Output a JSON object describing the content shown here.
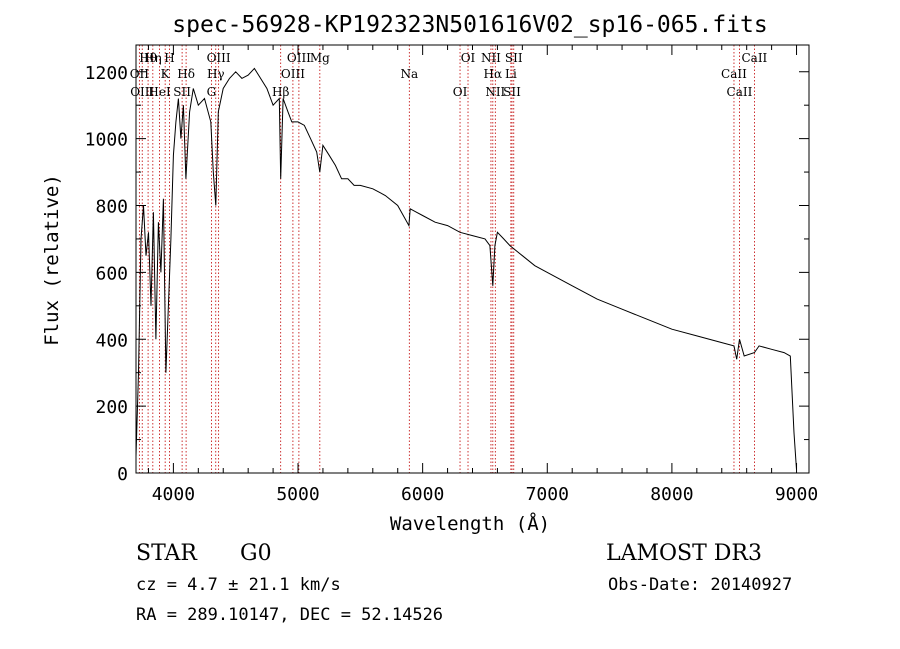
{
  "chart_data": {
    "type": "line",
    "title": "spec-56928-KP192323N501616V02_sp16-065.fits",
    "xlabel": "Wavelength (Å)",
    "ylabel": "Flux (relative)",
    "xlim": [
      3700,
      9100
    ],
    "ylim": [
      0,
      1280
    ],
    "x_ticks": [
      {
        "value": 4000,
        "label": "4000"
      },
      {
        "value": 5000,
        "label": "5000"
      },
      {
        "value": 6000,
        "label": "6000"
      },
      {
        "value": 7000,
        "label": "7000"
      },
      {
        "value": 8000,
        "label": "8000"
      },
      {
        "value": 9000,
        "label": "9000"
      }
    ],
    "y_ticks": [
      {
        "value": 0,
        "label": "0"
      },
      {
        "value": 200,
        "label": "200"
      },
      {
        "value": 400,
        "label": "400"
      },
      {
        "value": 600,
        "label": "600"
      },
      {
        "value": 800,
        "label": "800"
      },
      {
        "value": 1000,
        "label": "1000"
      },
      {
        "value": 1200,
        "label": "1200"
      }
    ],
    "series": [
      {
        "name": "flux",
        "x": [
          3700,
          3720,
          3740,
          3760,
          3780,
          3800,
          3820,
          3840,
          3860,
          3880,
          3900,
          3920,
          3940,
          3960,
          3980,
          4000,
          4020,
          4040,
          4060,
          4080,
          4100,
          4130,
          4160,
          4200,
          4250,
          4300,
          4320,
          4340,
          4360,
          4400,
          4450,
          4500,
          4550,
          4600,
          4650,
          4700,
          4750,
          4800,
          4850,
          4861,
          4880,
          4920,
          4950,
          5000,
          5050,
          5100,
          5150,
          5175,
          5200,
          5250,
          5300,
          5350,
          5400,
          5450,
          5500,
          5600,
          5700,
          5800,
          5890,
          5900,
          5950,
          6000,
          6100,
          6200,
          6300,
          6400,
          6500,
          6540,
          6563,
          6580,
          6600,
          6650,
          6700,
          6800,
          6900,
          7000,
          7200,
          7400,
          7600,
          7800,
          8000,
          8200,
          8400,
          8498,
          8520,
          8542,
          8580,
          8662,
          8700,
          8800,
          8900,
          8950,
          8980,
          9000
        ],
        "y": [
          50,
          300,
          700,
          800,
          650,
          720,
          500,
          780,
          400,
          750,
          600,
          820,
          300,
          500,
          700,
          950,
          1050,
          1120,
          1000,
          1100,
          880,
          1080,
          1150,
          1100,
          1120,
          1050,
          900,
          800,
          1080,
          1150,
          1180,
          1200,
          1180,
          1190,
          1210,
          1180,
          1150,
          1100,
          1120,
          880,
          1120,
          1080,
          1050,
          1050,
          1040,
          1000,
          960,
          900,
          980,
          950,
          920,
          880,
          880,
          860,
          860,
          850,
          830,
          800,
          740,
          790,
          780,
          770,
          750,
          740,
          720,
          710,
          700,
          680,
          560,
          680,
          720,
          700,
          680,
          650,
          620,
          600,
          560,
          520,
          490,
          460,
          430,
          410,
          390,
          380,
          340,
          400,
          350,
          360,
          380,
          370,
          360,
          350,
          120,
          10
        ]
      }
    ],
    "line_markers": [
      {
        "label": "Hθ",
        "x": 3797
      },
      {
        "label": "OII",
        "x": 3727
      },
      {
        "label": "OIII",
        "x": 3750
      },
      {
        "label": "Hη",
        "x": 3835
      },
      {
        "label": "K",
        "x": 3934
      },
      {
        "label": "HeI",
        "x": 3889
      },
      {
        "label": "H",
        "x": 3969
      },
      {
        "label": "Hδ",
        "x": 4102
      },
      {
        "label": "SII",
        "x": 4070
      },
      {
        "label": "OIII",
        "x": 4363
      },
      {
        "label": "Hγ",
        "x": 4340
      },
      {
        "label": "G",
        "x": 4305
      },
      {
        "label": "OIII",
        "x": 5007
      },
      {
        "label": "OIII",
        "x": 4959
      },
      {
        "label": "Hβ",
        "x": 4861
      },
      {
        "label": "Mg",
        "x": 5175
      },
      {
        "label": "Na",
        "x": 5893
      },
      {
        "label": "OI",
        "x": 6300
      },
      {
        "label": "OI",
        "x": 6364
      },
      {
        "label": "Hα",
        "x": 6563
      },
      {
        "label": "SII",
        "x": 6717
      },
      {
        "label": "NII",
        "x": 6548
      },
      {
        "label": "Li",
        "x": 6708
      },
      {
        "label": "NII",
        "x": 6583
      },
      {
        "label": "SII",
        "x": 6731
      },
      {
        "label": "CaII",
        "x": 8498
      },
      {
        "label": "CaII",
        "x": 8542
      },
      {
        "label": "CaII",
        "x": 8662
      }
    ]
  },
  "info": {
    "object_class": "STAR",
    "subclass": "G0",
    "survey": "LAMOST DR3",
    "cz": "cz = 4.7 ± 21.1 km/s",
    "obs_date": "Obs-Date: 20140927",
    "coords": "RA = 289.10147, DEC =  52.14526"
  }
}
